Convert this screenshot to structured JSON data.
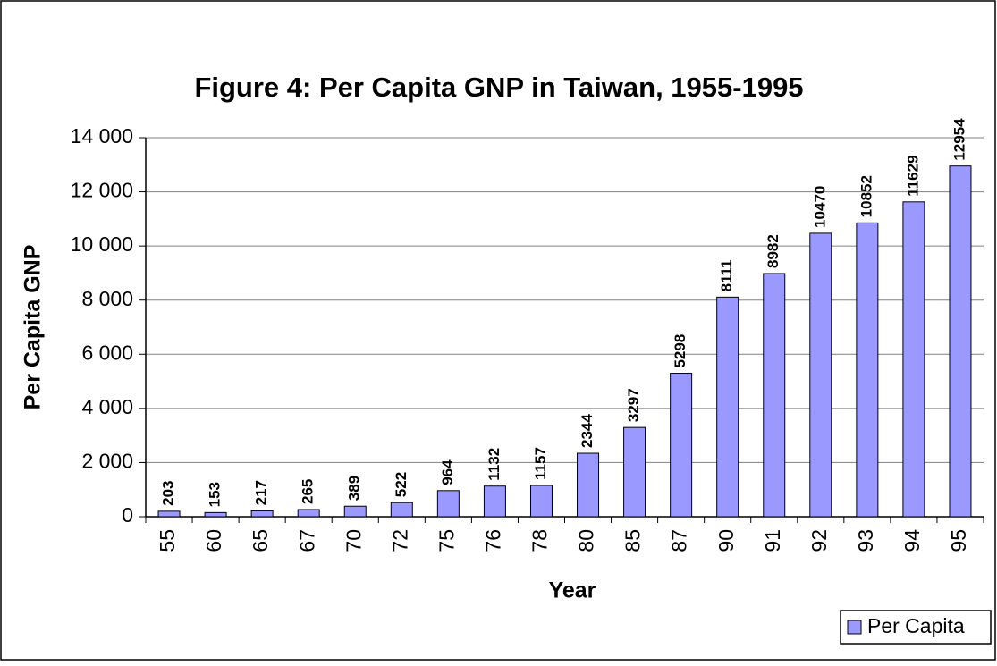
{
  "chart_data": {
    "type": "bar",
    "title": "Figure 4: Per Capita GNP in Taiwan, 1955-1995",
    "x_label": "Year",
    "y_label": "Per Capita GNP",
    "categories": [
      "55",
      "60",
      "65",
      "67",
      "70",
      "72",
      "75",
      "76",
      "78",
      "80",
      "85",
      "87",
      "90",
      "91",
      "92",
      "93",
      "94",
      "95"
    ],
    "series": [
      {
        "name": "Per Capita",
        "color": "#9999ff",
        "values": [
          203,
          153,
          217,
          265,
          389,
          522,
          964,
          1132,
          1157,
          2344,
          3297,
          5298,
          8111,
          8982,
          10470,
          10852,
          11629,
          12954
        ]
      }
    ],
    "ylim": [
      0,
      14000
    ],
    "yticks": [
      0,
      {
        "value": 2000,
        "label": "2 000"
      },
      {
        "value": 4000,
        "label": "4 000"
      },
      {
        "value": 6000,
        "label": "6 000"
      },
      {
        "value": 8000,
        "label": "8 000"
      },
      {
        "value": 10000,
        "label": "10 000"
      },
      {
        "value": 12000,
        "label": "12 000"
      },
      {
        "value": 14000,
        "label": "14 000"
      }
    ],
    "grid": true,
    "legend": "bottom-right"
  }
}
